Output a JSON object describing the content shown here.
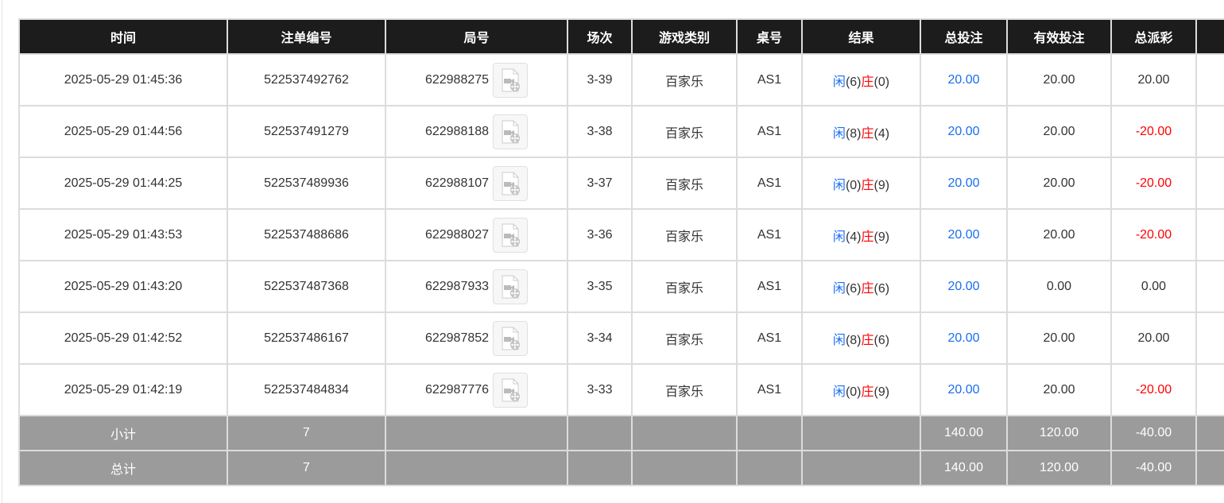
{
  "headers": [
    "时间",
    "注单编号",
    "局号",
    "场次",
    "游戏类别",
    "桌号",
    "结果",
    "总投注",
    "有效投注",
    "总派彩",
    ""
  ],
  "colors": {
    "header_bg": "#1c1c1c",
    "player": "#1a6ef0",
    "banker": "#ff0000",
    "summary_bg": "#9b9b9b"
  },
  "result_labels": {
    "player": "闲",
    "banker": "庄"
  },
  "rows": [
    {
      "time": "2025-05-29 01:45:36",
      "bet_id": "522537492762",
      "round": "622988275",
      "game_no": "3-39",
      "game": "百家乐",
      "table": "AS1",
      "player": "(6)",
      "banker": "(0)",
      "total_bet": "20.00",
      "valid_bet": "20.00",
      "payout": "20.00",
      "payout_negative": false
    },
    {
      "time": "2025-05-29 01:44:56",
      "bet_id": "522537491279",
      "round": "622988188",
      "game_no": "3-38",
      "game": "百家乐",
      "table": "AS1",
      "player": "(8)",
      "banker": "(4)",
      "total_bet": "20.00",
      "valid_bet": "20.00",
      "payout": "-20.00",
      "payout_negative": true
    },
    {
      "time": "2025-05-29 01:44:25",
      "bet_id": "522537489936",
      "round": "622988107",
      "game_no": "3-37",
      "game": "百家乐",
      "table": "AS1",
      "player": "(0)",
      "banker": "(9)",
      "total_bet": "20.00",
      "valid_bet": "20.00",
      "payout": "-20.00",
      "payout_negative": true
    },
    {
      "time": "2025-05-29 01:43:53",
      "bet_id": "522537488686",
      "round": "622988027",
      "game_no": "3-36",
      "game": "百家乐",
      "table": "AS1",
      "player": "(4)",
      "banker": "(9)",
      "total_bet": "20.00",
      "valid_bet": "20.00",
      "payout": "-20.00",
      "payout_negative": true
    },
    {
      "time": "2025-05-29 01:43:20",
      "bet_id": "522537487368",
      "round": "622987933",
      "game_no": "3-35",
      "game": "百家乐",
      "table": "AS1",
      "player": "(6)",
      "banker": "(6)",
      "total_bet": "20.00",
      "valid_bet": "0.00",
      "payout": "0.00",
      "payout_negative": false
    },
    {
      "time": "2025-05-29 01:42:52",
      "bet_id": "522537486167",
      "round": "622987852",
      "game_no": "3-34",
      "game": "百家乐",
      "table": "AS1",
      "player": "(8)",
      "banker": "(6)",
      "total_bet": "20.00",
      "valid_bet": "20.00",
      "payout": "20.00",
      "payout_negative": false
    },
    {
      "time": "2025-05-29 01:42:19",
      "bet_id": "522537484834",
      "round": "622987776",
      "game_no": "3-33",
      "game": "百家乐",
      "table": "AS1",
      "player": "(0)",
      "banker": "(9)",
      "total_bet": "20.00",
      "valid_bet": "20.00",
      "payout": "-20.00",
      "payout_negative": true
    }
  ],
  "subtotal": {
    "label": "小计",
    "count": "7",
    "total_bet": "140.00",
    "valid_bet": "120.00",
    "payout": "-40.00"
  },
  "total": {
    "label": "总计",
    "count": "7",
    "total_bet": "140.00",
    "valid_bet": "120.00",
    "payout": "-40.00"
  }
}
